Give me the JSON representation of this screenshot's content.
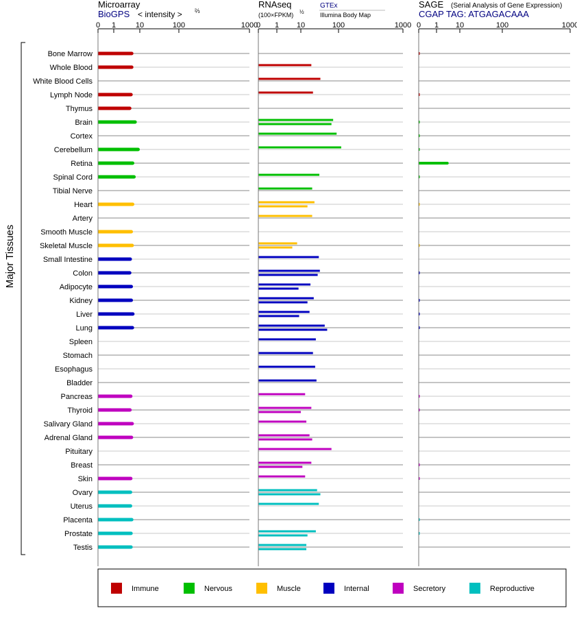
{
  "y_axis_label": "Major Tissues",
  "panels": {
    "microarray": {
      "title": "Microarray",
      "subtitle": "BioGPS",
      "unit_prefix": "< intensity >",
      "unit_power": "⅔"
    },
    "rnaseq": {
      "title": "RNAseq",
      "subtitle": "(100×FPKM)",
      "unit_power": "½",
      "link_gtex": "GTEx",
      "link_ibm": "Illumina Body Map"
    },
    "sage": {
      "title": "SAGE",
      "title_note": "(Serial Analysis of Gene Expression)",
      "subtitle": "CGAP TAG: ATGAGACAAA"
    }
  },
  "legend": [
    {
      "label": "Immune",
      "color": "#bf0000"
    },
    {
      "label": "Nervous",
      "color": "#00bf00"
    },
    {
      "label": "Muscle",
      "color": "#ffbf00"
    },
    {
      "label": "Internal",
      "color": "#0000bf"
    },
    {
      "label": "Secretory",
      "color": "#bf00bf"
    },
    {
      "label": "Reproductive",
      "color": "#00bfbf"
    }
  ],
  "chart_data": {
    "type": "bar",
    "axis": {
      "ticks": [
        "0",
        "1",
        "10",
        "100",
        "1000"
      ],
      "tick_values": [
        0,
        1,
        10,
        100,
        1000
      ],
      "xlim": [
        0,
        1000
      ],
      "scale": "root-power"
    },
    "tissues": [
      {
        "name": "Bone Marrow",
        "group": "Immune",
        "microarray": 4.9,
        "rnaseq": [],
        "sage": 0.01
      },
      {
        "name": "Whole Blood",
        "group": "Immune",
        "microarray": 4.9,
        "rnaseq": [
          19
        ],
        "sage": null
      },
      {
        "name": "White Blood Cells",
        "group": "Immune",
        "microarray": null,
        "rnaseq": [
          33
        ],
        "sage": null
      },
      {
        "name": "Lymph Node",
        "group": "Immune",
        "microarray": 4.6,
        "rnaseq": [
          21
        ],
        "sage": 0.01
      },
      {
        "name": "Thymus",
        "group": "Immune",
        "microarray": 4.1,
        "rnaseq": [],
        "sage": null
      },
      {
        "name": "Brain",
        "group": "Nervous",
        "microarray": 6.6,
        "rnaseq": [
          72,
          65
        ],
        "sage": 0.01
      },
      {
        "name": "Cortex",
        "group": "Nervous",
        "microarray": null,
        "rnaseq": [
          89
        ],
        "sage": 0.01
      },
      {
        "name": "Cerebellum",
        "group": "Nervous",
        "microarray": 8.6,
        "rnaseq": [
          110
        ],
        "sage": 0.01
      },
      {
        "name": "Retina",
        "group": "Nervous",
        "microarray": 5.3,
        "rnaseq": [],
        "sage": 2.9
      },
      {
        "name": "Spinal Cord",
        "group": "Nervous",
        "microarray": 6.0,
        "rnaseq": [
          31
        ],
        "sage": 0.01
      },
      {
        "name": "Tibial Nerve",
        "group": "Nervous",
        "microarray": null,
        "rnaseq": [
          20
        ],
        "sage": null
      },
      {
        "name": "Heart",
        "group": "Muscle",
        "microarray": 5.3,
        "rnaseq": [
          23,
          15
        ],
        "sage": 0.005
      },
      {
        "name": "Artery",
        "group": "Muscle",
        "microarray": null,
        "rnaseq": [
          20
        ],
        "sage": null
      },
      {
        "name": "Smooth Muscle",
        "group": "Muscle",
        "microarray": 4.7,
        "rnaseq": [],
        "sage": null
      },
      {
        "name": "Skeletal Muscle",
        "group": "Muscle",
        "microarray": 5.1,
        "rnaseq": [
          7,
          4.4
        ],
        "sage": 0.005
      },
      {
        "name": "Small Intestine",
        "group": "Internal",
        "microarray": 4.3,
        "rnaseq": [
          30
        ],
        "sage": null
      },
      {
        "name": "Colon",
        "group": "Internal",
        "microarray": 4.1,
        "rnaseq": [
          32,
          28
        ],
        "sage": 0.01
      },
      {
        "name": "Adipocyte",
        "group": "Internal",
        "microarray": 4.7,
        "rnaseq": [
          18,
          8
        ],
        "sage": null
      },
      {
        "name": "Kidney",
        "group": "Internal",
        "microarray": 4.7,
        "rnaseq": [
          22,
          15
        ],
        "sage": 0.01
      },
      {
        "name": "Liver",
        "group": "Internal",
        "microarray": 5.4,
        "rnaseq": [
          17,
          8.5
        ],
        "sage": 0.01
      },
      {
        "name": "Lung",
        "group": "Internal",
        "microarray": 5.2,
        "rnaseq": [
          43,
          50
        ],
        "sage": 0.01
      },
      {
        "name": "Spleen",
        "group": "Internal",
        "microarray": null,
        "rnaseq": [
          25
        ],
        "sage": null
      },
      {
        "name": "Stomach",
        "group": "Internal",
        "microarray": null,
        "rnaseq": [
          21
        ],
        "sage": null
      },
      {
        "name": "Esophagus",
        "group": "Internal",
        "microarray": null,
        "rnaseq": [
          24
        ],
        "sage": null
      },
      {
        "name": "Bladder",
        "group": "Internal",
        "microarray": null,
        "rnaseq": [
          26
        ],
        "sage": null
      },
      {
        "name": "Pancreas",
        "group": "Secretory",
        "microarray": 4.5,
        "rnaseq": [
          13
        ],
        "sage": 0.01
      },
      {
        "name": "Thyroid",
        "group": "Secretory",
        "microarray": 4.2,
        "rnaseq": [
          19,
          10
        ],
        "sage": 0.01
      },
      {
        "name": "Salivary Gland",
        "group": "Secretory",
        "microarray": 5.1,
        "rnaseq": [
          14
        ],
        "sage": null
      },
      {
        "name": "Adrenal Gland",
        "group": "Secretory",
        "microarray": 4.8,
        "rnaseq": [
          17,
          20
        ],
        "sage": null
      },
      {
        "name": "Pituitary",
        "group": "Secretory",
        "microarray": null,
        "rnaseq": [
          65
        ],
        "sage": null
      },
      {
        "name": "Breast",
        "group": "Secretory",
        "microarray": null,
        "rnaseq": [
          19,
          11
        ],
        "sage": 0.01
      },
      {
        "name": "Skin",
        "group": "Secretory",
        "microarray": 4.5,
        "rnaseq": [
          13
        ],
        "sage": 0.01
      },
      {
        "name": "Ovary",
        "group": "Reproductive",
        "microarray": 4.4,
        "rnaseq": [
          27,
          33
        ],
        "sage": null
      },
      {
        "name": "Uterus",
        "group": "Reproductive",
        "microarray": 4.4,
        "rnaseq": [
          30
        ],
        "sage": null
      },
      {
        "name": "Placenta",
        "group": "Reproductive",
        "microarray": 4.9,
        "rnaseq": [],
        "sage": 0.01
      },
      {
        "name": "Prostate",
        "group": "Reproductive",
        "microarray": 4.6,
        "rnaseq": [
          25,
          15
        ],
        "sage": 0.01
      },
      {
        "name": "Testis",
        "group": "Reproductive",
        "microarray": 4.6,
        "rnaseq": [
          14,
          14
        ],
        "sage": null
      }
    ]
  }
}
